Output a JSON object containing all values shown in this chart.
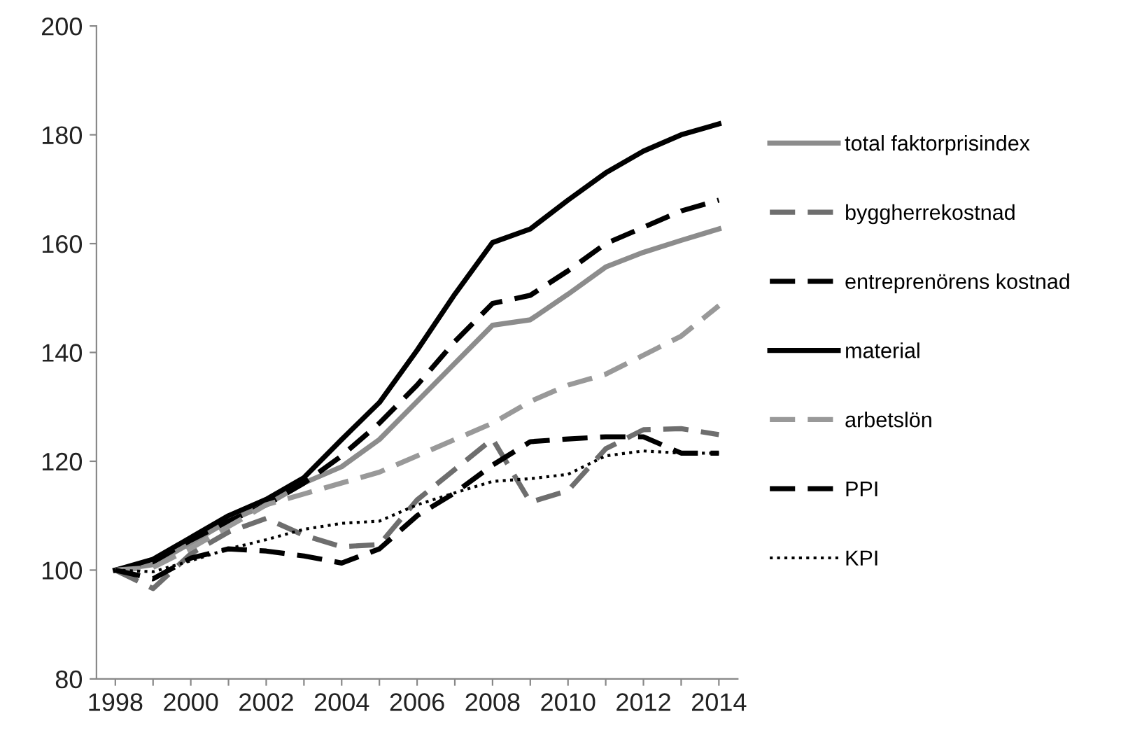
{
  "chart_data": {
    "type": "line",
    "categories": [
      "1998",
      null,
      "2000",
      null,
      "2002",
      null,
      "2004",
      null,
      "2006",
      null,
      "2008",
      null,
      "2010",
      null,
      "2012",
      null,
      "2014"
    ],
    "ylim": [
      80,
      200
    ],
    "yticks": [
      80,
      100,
      120,
      140,
      160,
      180,
      200
    ],
    "grid": false,
    "legend": "right",
    "marker": "none",
    "series": [
      {
        "name": "total faktorprisindex",
        "color": "#8c8c8c",
        "line_style": "solid",
        "values": [
          100,
          101,
          105,
          109,
          112,
          116,
          119,
          124,
          131,
          138,
          145,
          146,
          150.7,
          155.7,
          158.4,
          160.6,
          162.7
        ]
      },
      {
        "name": "byggherrekostnad",
        "color": "#6e6e6e",
        "line_style": "dashed",
        "values": [
          100,
          96.6,
          103,
          107,
          109.5,
          106.4,
          104.3,
          104.7,
          112.9,
          118.5,
          124.1,
          112.5,
          114.6,
          122.3,
          125.8,
          126,
          124.9
        ]
      },
      {
        "name": "entreprenörens kostnad",
        "color": "#000000",
        "line_style": "dashed",
        "values": [
          100,
          101.5,
          105.5,
          109,
          112,
          116,
          121,
          127,
          134,
          142,
          149,
          150.5,
          155,
          160,
          163,
          166,
          168
        ]
      },
      {
        "name": "material",
        "color": "#000000",
        "line_style": "solid",
        "values": [
          100,
          102,
          106,
          110,
          113,
          117,
          124,
          130.8,
          140.4,
          150.7,
          160.2,
          162.7,
          168,
          173,
          177,
          180,
          182
        ]
      },
      {
        "name": "arbetslön",
        "color": "#999999",
        "line_style": "dashed",
        "values": [
          100,
          100.5,
          104,
          108,
          112,
          114,
          116,
          118,
          121,
          124,
          127,
          131,
          134,
          136,
          139.5,
          143,
          148.6
        ]
      },
      {
        "name": "PPI",
        "color": "#000000",
        "line_style": "dashed",
        "values": [
          100,
          98.4,
          102.2,
          103.9,
          103.5,
          102.6,
          101.3,
          103.9,
          110,
          114.2,
          119.3,
          123.6,
          124.1,
          124.5,
          124.5,
          121.5,
          121.5
        ]
      },
      {
        "name": "KPI",
        "color": "#000000",
        "line_style": "dotted",
        "values": [
          100,
          99.7,
          101.7,
          103.9,
          105.6,
          107.5,
          108.6,
          109,
          112,
          114.2,
          116.3,
          116.8,
          117.6,
          121,
          121.9,
          121.5,
          121.5
        ]
      }
    ]
  }
}
